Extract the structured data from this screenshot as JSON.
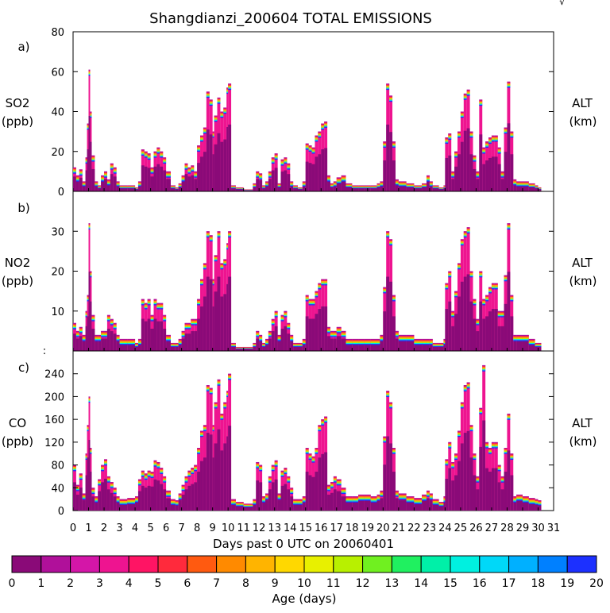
{
  "title": "Shangdianzi_200604 TOTAL EMISSIONS",
  "corner_mark": "√",
  "xlabel": "Days past 0 UTC on 20060401",
  "x_ticks": [
    "0",
    "1",
    "2",
    "3",
    "4",
    "5",
    "6",
    "7",
    "8",
    "9",
    "10",
    "11",
    "12",
    "13",
    "14",
    "15",
    "16",
    "17",
    "18",
    "19",
    "20",
    "21",
    "22",
    "23",
    "24",
    "25",
    "26",
    "27",
    "28",
    "29",
    "30",
    "31"
  ],
  "right_label_1": "ALT",
  "right_label_2": "(km)",
  "colorbar": {
    "label": "Age (days)",
    "ticks": [
      "0",
      "1",
      "2",
      "3",
      "4",
      "5",
      "6",
      "7",
      "8",
      "9",
      "10",
      "11",
      "12",
      "13",
      "14",
      "15",
      "16",
      "17",
      "18",
      "19",
      "20"
    ],
    "colors": [
      "#8a0a78",
      "#b0109a",
      "#d416a8",
      "#ee1490",
      "#ff1464",
      "#ff2a3c",
      "#ff5a10",
      "#ff8a00",
      "#ffb400",
      "#ffd800",
      "#e8f000",
      "#b8f000",
      "#70f020",
      "#20f060",
      "#00f0a8",
      "#00f0e0",
      "#00d8f8",
      "#00b0ff",
      "#0080ff",
      "#1c30ff",
      "#7010f0"
    ]
  },
  "chart_data": [
    {
      "type": "area",
      "panel_letter": "a)",
      "species": "SO2",
      "unit": "(ppb)",
      "ylim": [
        0,
        80
      ],
      "y_ticks": [
        "0",
        "20",
        "40",
        "60",
        "80"
      ],
      "x": [
        0,
        0.2,
        0.4,
        0.6,
        0.8,
        0.9,
        1.0,
        1.1,
        1.2,
        1.4,
        1.6,
        1.8,
        2.0,
        2.2,
        2.4,
        2.6,
        2.8,
        3.0,
        3.5,
        4.0,
        4.2,
        4.4,
        4.6,
        4.8,
        5.0,
        5.2,
        5.4,
        5.6,
        5.8,
        6.0,
        6.3,
        6.6,
        6.8,
        7.0,
        7.2,
        7.4,
        7.6,
        7.8,
        8.0,
        8.2,
        8.4,
        8.6,
        8.8,
        9.0,
        9.1,
        9.3,
        9.5,
        9.7,
        9.9,
        10.0,
        10.2,
        10.5,
        11.0,
        11.3,
        11.6,
        11.8,
        12.0,
        12.2,
        12.4,
        12.6,
        12.8,
        13.0,
        13.2,
        13.4,
        13.6,
        13.8,
        14.0,
        14.2,
        14.5,
        14.8,
        15.0,
        15.2,
        15.4,
        15.6,
        15.8,
        16.0,
        16.2,
        16.4,
        16.6,
        16.8,
        17.0,
        17.3,
        17.6,
        18.0,
        18.4,
        18.8,
        19.2,
        19.6,
        19.8,
        20.0,
        20.2,
        20.4,
        20.6,
        20.8,
        21.0,
        21.5,
        22.0,
        22.5,
        22.8,
        23.0,
        23.2,
        23.6,
        23.9,
        24.0,
        24.2,
        24.4,
        24.6,
        24.8,
        25.0,
        25.2,
        25.4,
        25.6,
        25.8,
        26.0,
        26.2,
        26.4,
        26.6,
        26.8,
        27.0,
        27.2,
        27.4,
        27.6,
        27.8,
        28.0,
        28.2,
        28.4,
        28.6,
        29.0,
        29.4,
        29.8,
        30.0
      ],
      "values": [
        12,
        8,
        11,
        5,
        17,
        34,
        61,
        40,
        18,
        5,
        3,
        8,
        10,
        6,
        14,
        12,
        5,
        3,
        3,
        2,
        5,
        21,
        20,
        19,
        12,
        20,
        22,
        20,
        17,
        10,
        3,
        2,
        4,
        8,
        14,
        12,
        13,
        10,
        23,
        28,
        32,
        50,
        46,
        30,
        38,
        47,
        40,
        42,
        52,
        54,
        3,
        2,
        1,
        1,
        4,
        10,
        9,
        3,
        5,
        10,
        17,
        19,
        4,
        16,
        17,
        14,
        5,
        3,
        2,
        5,
        24,
        23,
        22,
        28,
        30,
        34,
        35,
        8,
        4,
        5,
        7,
        8,
        4,
        3,
        3,
        3,
        3,
        4,
        5,
        25,
        54,
        48,
        25,
        6,
        5,
        4,
        3,
        4,
        8,
        5,
        3,
        2,
        3,
        27,
        29,
        10,
        20,
        30,
        40,
        49,
        51,
        30,
        18,
        10,
        46,
        22,
        25,
        27,
        28,
        28,
        22,
        10,
        32,
        55,
        30,
        6,
        5,
        5,
        4,
        3,
        2
      ],
      "annotations": []
    },
    {
      "type": "area",
      "panel_letter": "b)",
      "species": "NO2",
      "unit": "(ppb)",
      "ylim": [
        0,
        40
      ],
      "y_ticks": [
        "",
        "10",
        "20",
        "30"
      ],
      "x": [
        0,
        0.2,
        0.4,
        0.6,
        0.8,
        0.9,
        1.0,
        1.1,
        1.2,
        1.4,
        1.6,
        1.8,
        2.0,
        2.2,
        2.4,
        2.6,
        2.8,
        3.0,
        3.5,
        4.0,
        4.2,
        4.4,
        4.6,
        4.8,
        5.0,
        5.2,
        5.4,
        5.6,
        5.8,
        6.0,
        6.3,
        6.6,
        6.8,
        7.0,
        7.2,
        7.4,
        7.6,
        7.8,
        8.0,
        8.2,
        8.4,
        8.6,
        8.8,
        9.0,
        9.1,
        9.3,
        9.5,
        9.7,
        9.9,
        10.0,
        10.2,
        10.5,
        11.0,
        11.3,
        11.6,
        11.8,
        12.0,
        12.2,
        12.4,
        12.6,
        12.8,
        13.0,
        13.2,
        13.4,
        13.6,
        13.8,
        14.0,
        14.2,
        14.5,
        14.8,
        15.0,
        15.2,
        15.4,
        15.6,
        15.8,
        16.0,
        16.2,
        16.4,
        16.6,
        16.8,
        17.0,
        17.3,
        17.6,
        18.0,
        18.4,
        18.8,
        19.2,
        19.6,
        19.8,
        20.0,
        20.2,
        20.4,
        20.6,
        20.8,
        21.0,
        21.5,
        22.0,
        22.5,
        22.8,
        23.0,
        23.2,
        23.6,
        23.9,
        24.0,
        24.2,
        24.4,
        24.6,
        24.8,
        25.0,
        25.2,
        25.4,
        25.6,
        25.8,
        26.0,
        26.2,
        26.4,
        26.6,
        26.8,
        27.0,
        27.2,
        27.4,
        27.6,
        27.8,
        28.0,
        28.2,
        28.4,
        28.6,
        29.0,
        29.4,
        29.8,
        30.0
      ],
      "values": [
        7,
        5,
        6,
        4,
        10,
        14,
        32,
        20,
        9,
        4,
        4,
        5,
        5,
        9,
        8,
        7,
        4,
        3,
        3,
        2,
        3,
        13,
        12,
        13,
        9,
        13,
        12,
        12,
        9,
        4,
        2,
        2,
        3,
        5,
        7,
        7,
        8,
        8,
        13,
        18,
        22,
        30,
        29,
        18,
        24,
        30,
        22,
        23,
        27,
        30,
        2,
        1,
        1,
        1,
        2,
        5,
        4,
        2,
        3,
        5,
        8,
        10,
        4,
        9,
        10,
        7,
        4,
        2,
        2,
        3,
        14,
        13,
        13,
        15,
        17,
        18,
        18,
        6,
        5,
        5,
        6,
        5,
        3,
        3,
        3,
        3,
        3,
        3,
        4,
        16,
        30,
        28,
        14,
        5,
        4,
        4,
        3,
        3,
        3,
        3,
        2,
        2,
        3,
        17,
        20,
        10,
        15,
        22,
        28,
        30,
        31,
        20,
        13,
        8,
        20,
        13,
        14,
        16,
        17,
        17,
        10,
        10,
        19,
        32,
        14,
        4,
        4,
        4,
        3,
        2,
        2
      ],
      "annotations": [
        ":"
      ]
    },
    {
      "type": "area",
      "panel_letter": "c)",
      "species": "CO",
      "unit": "(ppb)",
      "ylim": [
        0,
        280
      ],
      "y_ticks": [
        "0",
        "40",
        "80",
        "120",
        "160",
        "200",
        "240"
      ],
      "x": [
        0,
        0.2,
        0.4,
        0.6,
        0.8,
        0.9,
        1.0,
        1.1,
        1.2,
        1.4,
        1.6,
        1.8,
        2.0,
        2.2,
        2.4,
        2.6,
        2.8,
        3.0,
        3.5,
        4.0,
        4.2,
        4.4,
        4.6,
        4.8,
        5.0,
        5.2,
        5.4,
        5.6,
        5.8,
        6.0,
        6.3,
        6.6,
        6.8,
        7.0,
        7.2,
        7.4,
        7.6,
        7.8,
        8.0,
        8.2,
        8.4,
        8.6,
        8.8,
        9.0,
        9.1,
        9.3,
        9.5,
        9.7,
        9.9,
        10.0,
        10.2,
        10.5,
        11.0,
        11.3,
        11.6,
        11.8,
        12.0,
        12.2,
        12.4,
        12.6,
        12.8,
        13.0,
        13.2,
        13.4,
        13.6,
        13.8,
        14.0,
        14.2,
        14.5,
        14.8,
        15.0,
        15.2,
        15.4,
        15.6,
        15.8,
        16.0,
        16.2,
        16.4,
        16.6,
        16.8,
        17.0,
        17.3,
        17.6,
        18.0,
        18.4,
        18.8,
        19.2,
        19.6,
        19.8,
        20.0,
        20.2,
        20.4,
        20.6,
        20.8,
        21.0,
        21.5,
        22.0,
        22.5,
        22.8,
        23.0,
        23.2,
        23.6,
        23.9,
        24.0,
        24.2,
        24.4,
        24.6,
        24.8,
        25.0,
        25.2,
        25.4,
        25.6,
        25.8,
        26.0,
        26.2,
        26.4,
        26.6,
        26.8,
        27.0,
        27.2,
        27.4,
        27.6,
        27.8,
        28.0,
        28.2,
        28.4,
        28.6,
        29.0,
        29.4,
        29.8,
        30.0
      ],
      "values": [
        80,
        45,
        65,
        30,
        100,
        150,
        200,
        110,
        40,
        25,
        55,
        80,
        90,
        60,
        50,
        40,
        25,
        20,
        22,
        25,
        55,
        70,
        65,
        70,
        68,
        88,
        85,
        75,
        60,
        35,
        20,
        18,
        30,
        45,
        60,
        70,
        75,
        80,
        110,
        140,
        150,
        220,
        215,
        150,
        190,
        230,
        170,
        190,
        210,
        240,
        20,
        15,
        12,
        12,
        20,
        85,
        80,
        25,
        30,
        60,
        80,
        88,
        30,
        70,
        75,
        60,
        40,
        20,
        20,
        25,
        110,
        100,
        95,
        110,
        150,
        160,
        165,
        45,
        50,
        60,
        55,
        40,
        25,
        25,
        28,
        28,
        25,
        28,
        35,
        130,
        210,
        190,
        110,
        35,
        30,
        25,
        22,
        28,
        35,
        30,
        20,
        15,
        25,
        90,
        120,
        85,
        100,
        140,
        190,
        220,
        225,
        150,
        100,
        60,
        180,
        255,
        120,
        110,
        120,
        120,
        80,
        60,
        110,
        170,
        100,
        25,
        28,
        25,
        22,
        20,
        18
      ],
      "annotations": []
    }
  ]
}
